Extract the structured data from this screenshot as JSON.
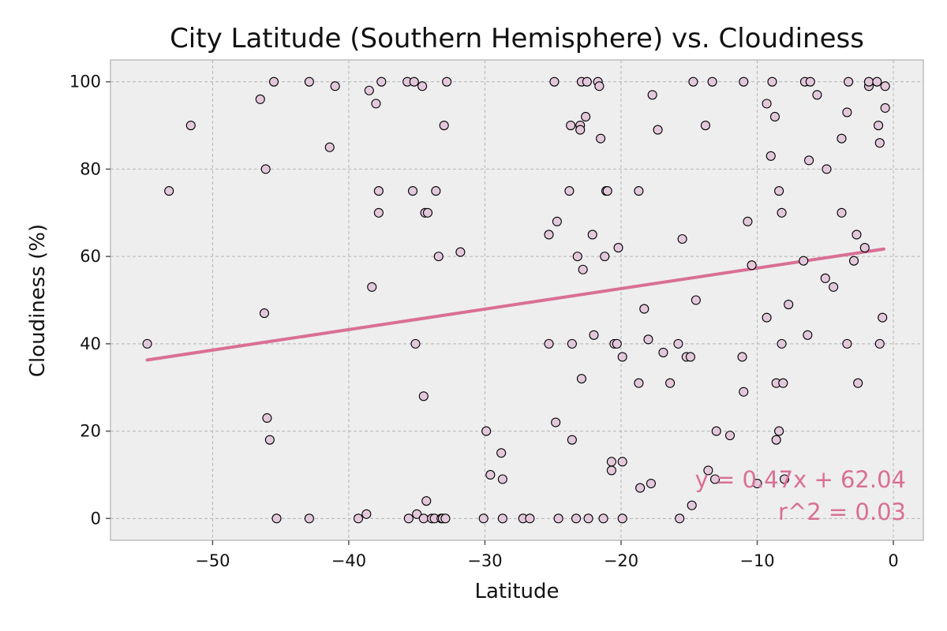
{
  "chart_data": {
    "type": "scatter",
    "title": "City Latitude (Southern Hemisphere) vs. Cloudiness",
    "xlabel": "Latitude",
    "ylabel": "Cloudiness (%)",
    "xlim": [
      -57.5,
      2.2
    ],
    "ylim": [
      -5,
      105
    ],
    "xticks": [
      -50,
      -40,
      -30,
      -20,
      -10,
      0
    ],
    "yticks": [
      0,
      20,
      40,
      60,
      80,
      100
    ],
    "xtick_labels": [
      "−50",
      "−40",
      "−30",
      "−20",
      "−10",
      "0"
    ],
    "ytick_labels": [
      "0",
      "20",
      "40",
      "60",
      "80",
      "100"
    ],
    "grid": true,
    "colors": {
      "background": "#eeeeee",
      "point_fill": "#e3c8dc",
      "point_edge": "#000000",
      "regression": "#d96f95",
      "grid": "#b5b5b5"
    },
    "regression": {
      "x": [
        -54.8,
        -0.7
      ],
      "y": [
        36.3,
        61.7
      ]
    },
    "annotations": [
      "y = 0.47x + 62.04",
      "r^2 = 0.03"
    ],
    "points": [
      [
        -54.8,
        40
      ],
      [
        -53.2,
        75
      ],
      [
        -51.6,
        90
      ],
      [
        -46.5,
        96
      ],
      [
        -46.1,
        80
      ],
      [
        -46.2,
        47
      ],
      [
        -46.0,
        23
      ],
      [
        -45.8,
        18
      ],
      [
        -45.5,
        100
      ],
      [
        -45.3,
        0
      ],
      [
        -42.9,
        100
      ],
      [
        -42.9,
        0
      ],
      [
        -41.4,
        85
      ],
      [
        -41.0,
        99
      ],
      [
        -39.3,
        0
      ],
      [
        -38.7,
        1
      ],
      [
        -38.5,
        98
      ],
      [
        -38.3,
        53
      ],
      [
        -38.0,
        95
      ],
      [
        -37.8,
        75
      ],
      [
        -37.8,
        70
      ],
      [
        -37.6,
        100
      ],
      [
        -35.7,
        100
      ],
      [
        -35.6,
        0
      ],
      [
        -35.3,
        75
      ],
      [
        -35.2,
        100
      ],
      [
        -35.1,
        40
      ],
      [
        -35.0,
        1
      ],
      [
        -34.6,
        99
      ],
      [
        -34.5,
        28
      ],
      [
        -34.5,
        0
      ],
      [
        -34.4,
        70
      ],
      [
        -34.3,
        4
      ],
      [
        -34.2,
        70
      ],
      [
        -33.9,
        0
      ],
      [
        -33.7,
        0
      ],
      [
        -33.6,
        75
      ],
      [
        -33.4,
        60
      ],
      [
        -33.2,
        0
      ],
      [
        -33.1,
        0
      ],
      [
        -33.0,
        90
      ],
      [
        -32.9,
        0
      ],
      [
        -32.8,
        100
      ],
      [
        -31.8,
        61
      ],
      [
        -30.1,
        0
      ],
      [
        -29.9,
        20
      ],
      [
        -29.6,
        10
      ],
      [
        -28.8,
        15
      ],
      [
        -28.7,
        9
      ],
      [
        -28.7,
        0
      ],
      [
        -27.2,
        0
      ],
      [
        -26.7,
        0
      ],
      [
        -25.3,
        65
      ],
      [
        -25.3,
        40
      ],
      [
        -24.9,
        100
      ],
      [
        -24.8,
        22
      ],
      [
        -24.7,
        68
      ],
      [
        -24.6,
        0
      ],
      [
        -23.8,
        75
      ],
      [
        -23.7,
        90
      ],
      [
        -23.6,
        40
      ],
      [
        -23.6,
        18
      ],
      [
        -23.3,
        0
      ],
      [
        -23.2,
        60
      ],
      [
        -23.0,
        90
      ],
      [
        -23.0,
        89
      ],
      [
        -22.9,
        32
      ],
      [
        -22.9,
        100
      ],
      [
        -22.8,
        57
      ],
      [
        -22.6,
        92
      ],
      [
        -22.5,
        100
      ],
      [
        -22.4,
        0
      ],
      [
        -22.1,
        65
      ],
      [
        -22.0,
        42
      ],
      [
        -21.7,
        100
      ],
      [
        -21.6,
        99
      ],
      [
        -21.5,
        87
      ],
      [
        -21.3,
        0
      ],
      [
        -21.2,
        60
      ],
      [
        -21.1,
        75
      ],
      [
        -21.0,
        75
      ],
      [
        -20.7,
        13
      ],
      [
        -20.7,
        11
      ],
      [
        -20.5,
        40
      ],
      [
        -20.3,
        40
      ],
      [
        -20.2,
        62
      ],
      [
        -19.9,
        37
      ],
      [
        -19.9,
        13
      ],
      [
        -19.9,
        0
      ],
      [
        -18.7,
        75
      ],
      [
        -18.7,
        31
      ],
      [
        -18.6,
        7
      ],
      [
        -18.3,
        48
      ],
      [
        -18.0,
        41
      ],
      [
        -17.8,
        8
      ],
      [
        -17.7,
        97
      ],
      [
        -17.3,
        89
      ],
      [
        -16.9,
        38
      ],
      [
        -16.4,
        31
      ],
      [
        -15.8,
        40
      ],
      [
        -15.7,
        0
      ],
      [
        -15.5,
        64
      ],
      [
        -15.2,
        37
      ],
      [
        -14.9,
        37
      ],
      [
        -14.8,
        3
      ],
      [
        -14.7,
        100
      ],
      [
        -14.5,
        50
      ],
      [
        -13.8,
        90
      ],
      [
        -13.6,
        11
      ],
      [
        -13.3,
        100
      ],
      [
        -13.1,
        9
      ],
      [
        -13.0,
        20
      ],
      [
        -12.0,
        19
      ],
      [
        -11.1,
        37
      ],
      [
        -11.0,
        29
      ],
      [
        -11.0,
        100
      ],
      [
        -10.7,
        68
      ],
      [
        -10.4,
        58
      ],
      [
        -10.0,
        8
      ],
      [
        -9.3,
        95
      ],
      [
        -9.3,
        46
      ],
      [
        -9.0,
        83
      ],
      [
        -8.9,
        100
      ],
      [
        -8.7,
        92
      ],
      [
        -8.6,
        31
      ],
      [
        -8.6,
        18
      ],
      [
        -8.4,
        75
      ],
      [
        -8.4,
        20
      ],
      [
        -8.2,
        70
      ],
      [
        -8.2,
        40
      ],
      [
        -8.1,
        31
      ],
      [
        -8.0,
        9
      ],
      [
        -7.7,
        49
      ],
      [
        -6.6,
        59
      ],
      [
        -6.5,
        100
      ],
      [
        -6.3,
        42
      ],
      [
        -6.2,
        82
      ],
      [
        -6.1,
        100
      ],
      [
        -5.6,
        97
      ],
      [
        -4.9,
        80
      ],
      [
        -5.0,
        55
      ],
      [
        -4.4,
        53
      ],
      [
        -3.8,
        87
      ],
      [
        -3.8,
        70
      ],
      [
        -3.4,
        93
      ],
      [
        -3.4,
        40
      ],
      [
        -3.3,
        100
      ],
      [
        -2.9,
        59
      ],
      [
        -2.7,
        65
      ],
      [
        -2.6,
        31
      ],
      [
        -2.1,
        62
      ],
      [
        -1.8,
        99
      ],
      [
        -1.8,
        100
      ],
      [
        -1.2,
        100
      ],
      [
        -1.1,
        90
      ],
      [
        -1.0,
        86
      ],
      [
        -1.0,
        40
      ],
      [
        -0.8,
        46
      ],
      [
        -0.6,
        94
      ],
      [
        -0.6,
        99
      ]
    ]
  }
}
